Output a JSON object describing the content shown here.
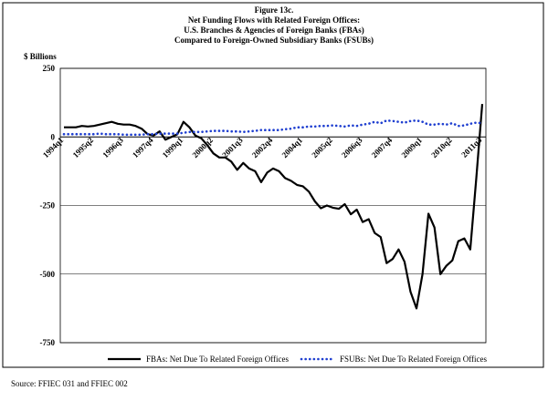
{
  "chart_data": {
    "type": "line",
    "title": "Figure 13c.",
    "subtitle": [
      "Net Funding Flows with Related Foreign Offices:",
      "U.S. Branches & Agencies of Foreign Banks (FBAs)",
      "Compared to Foreign-Owned Subsidiary Banks (FSUBs)"
    ],
    "y_label": "$ Billions",
    "source": "Source: FFIEC 031 and FFIEC 002",
    "categories": [
      "1994q1",
      null,
      null,
      null,
      null,
      "1995q2",
      null,
      null,
      null,
      null,
      "1996q3",
      null,
      null,
      null,
      null,
      "1997q4",
      null,
      null,
      null,
      null,
      "1999q1",
      null,
      null,
      null,
      null,
      "2000q2",
      null,
      null,
      null,
      null,
      "2001q3",
      null,
      null,
      null,
      null,
      "2002q4",
      null,
      null,
      null,
      null,
      "2004q1",
      null,
      null,
      null,
      null,
      "2005q2",
      null,
      null,
      null,
      null,
      "2006q3",
      null,
      null,
      null,
      null,
      "2007q4",
      null,
      null,
      null,
      null,
      "2009q1",
      null,
      null,
      null,
      null,
      "2010q2",
      null,
      null,
      null,
      null,
      "2011q3"
    ],
    "series": [
      {
        "name": "FBAs: Net Due To Related Foreign Offices",
        "color": "#000000",
        "dash": "solid",
        "values": [
          35,
          35,
          35,
          40,
          38,
          40,
          45,
          50,
          55,
          48,
          45,
          45,
          40,
          30,
          10,
          5,
          20,
          -10,
          0,
          10,
          55,
          35,
          5,
          -5,
          -30,
          -60,
          -75,
          -75,
          -90,
          -120,
          -95,
          -115,
          -125,
          -165,
          -130,
          -115,
          -125,
          -150,
          -160,
          -175,
          -180,
          -200,
          -235,
          -260,
          -250,
          -258,
          -262,
          -245,
          -282,
          -265,
          -310,
          -300,
          -350,
          -365,
          -460,
          -445,
          -410,
          -455,
          -565,
          -625,
          -500,
          -280,
          -330,
          -500,
          -470,
          -450,
          -380,
          -370,
          -410,
          -150,
          120
        ]
      },
      {
        "name": "FSUBs: Net Due To Related Foreign Offices",
        "color": "#1f3fd0",
        "dash": "dotted",
        "values": [
          10,
          10,
          10,
          10,
          10,
          10,
          12,
          10,
          10,
          10,
          8,
          8,
          8,
          8,
          10,
          10,
          12,
          12,
          12,
          12,
          15,
          18,
          18,
          18,
          20,
          22,
          22,
          22,
          20,
          20,
          18,
          20,
          22,
          25,
          25,
          25,
          25,
          28,
          30,
          35,
          35,
          38,
          38,
          40,
          40,
          42,
          40,
          38,
          42,
          40,
          45,
          48,
          55,
          50,
          60,
          58,
          55,
          52,
          58,
          60,
          55,
          45,
          45,
          48,
          45,
          50,
          40,
          42,
          48,
          52,
          50
        ]
      }
    ],
    "ylim": [
      -750,
      250
    ],
    "yticks": [
      250,
      0,
      -250,
      -500,
      -750
    ],
    "grid": true,
    "legend": "bottom"
  }
}
